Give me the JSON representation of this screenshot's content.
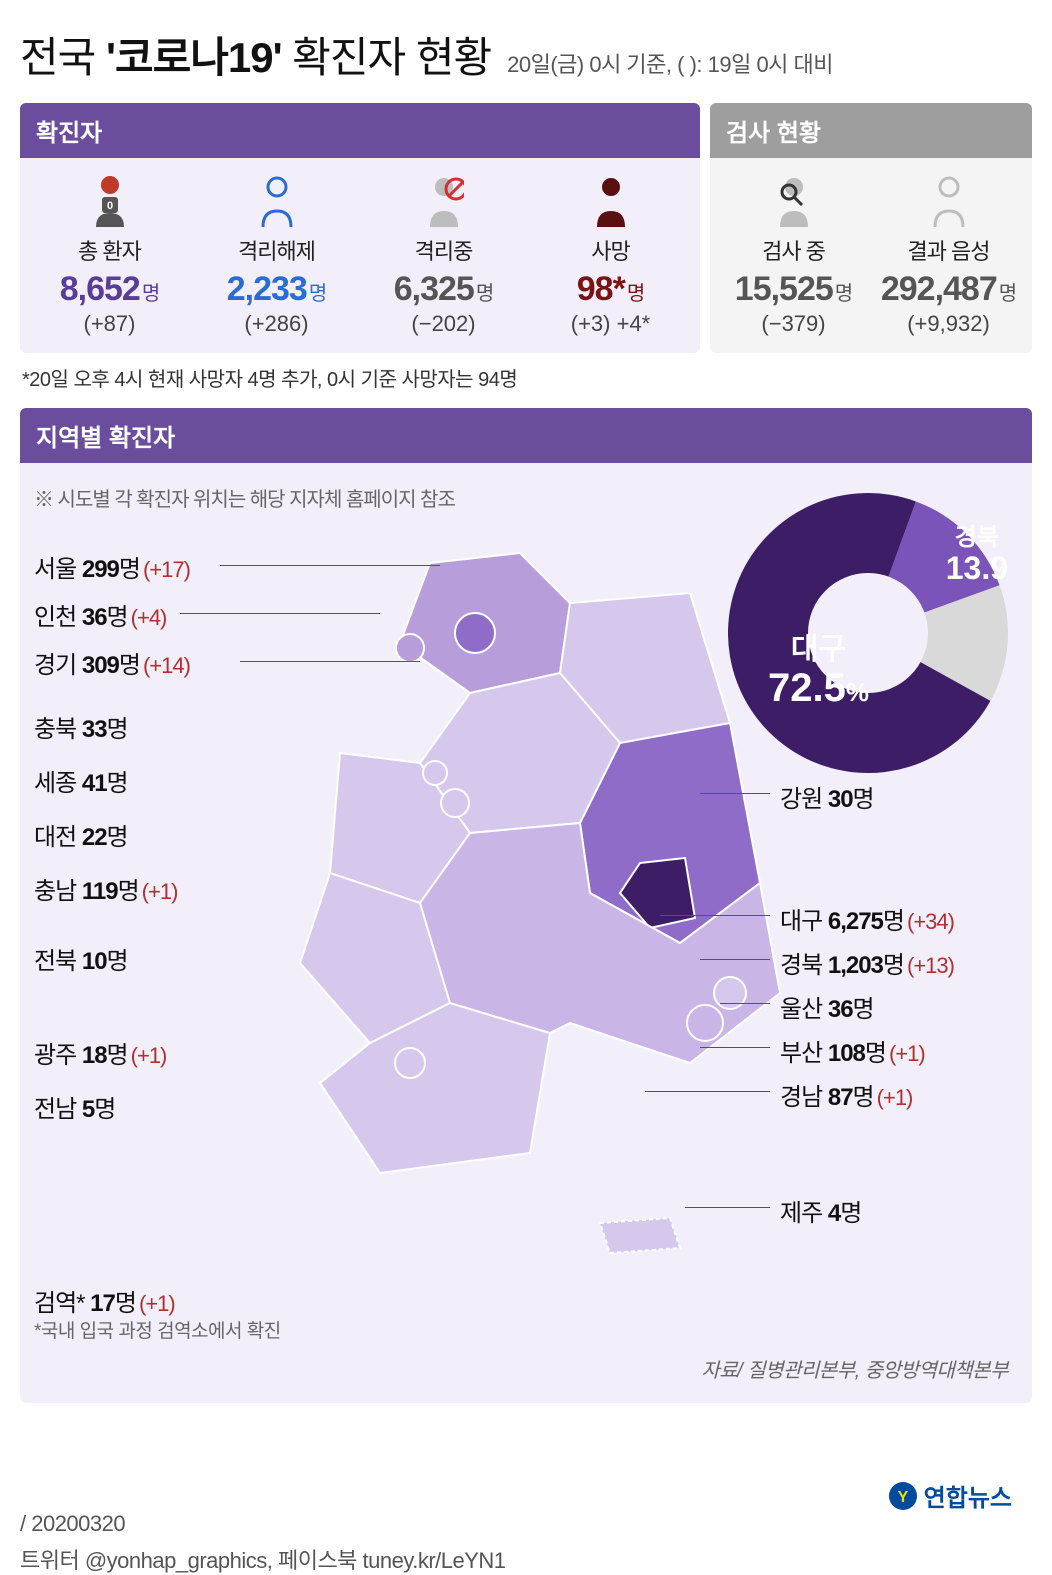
{
  "title_pre": "전국 ",
  "title_bold": "'코로나19'",
  "title_post": " 확진자 현황",
  "asof": "20일(금) 0시 기준, ( ): 19일 0시 대비",
  "panel_left_title": "확진자",
  "panel_right_title": "검사 현황",
  "stats": {
    "total": {
      "label": "총 환자",
      "value": "8,652",
      "unit": "명",
      "delta": "(+87)",
      "color": "#5a3d99"
    },
    "release": {
      "label": "격리해제",
      "value": "2,233",
      "unit": "명",
      "delta": "(+286)",
      "color": "#2b6cd4"
    },
    "isol": {
      "label": "격리중",
      "value": "6,325",
      "unit": "명",
      "delta": "(−202)",
      "color": "#555555"
    },
    "death": {
      "label": "사망",
      "value": "98*",
      "unit": "명",
      "delta": "(+3) +4*",
      "color": "#7a1313"
    },
    "testing": {
      "label": "검사 중",
      "value": "15,525",
      "unit": "명",
      "delta": "(−379)",
      "color": "#555555"
    },
    "neg": {
      "label": "결과 음성",
      "value": "292,487",
      "unit": "명",
      "delta": "(+9,932)",
      "color": "#555555"
    }
  },
  "death_note": "*20일 오후 4시 현재 사망자 4명 추가, 0시 기준 사망자는 94명",
  "region_header": "지역별 확진자",
  "map_note": "※ 시도별 각 확진자 위치는 해당 지자체 홈페이지 참조",
  "donut": {
    "values": {
      "daegu": 72.5,
      "gyeongbuk": 13.9,
      "other": 13.6
    },
    "labels": {
      "daegu": "대구",
      "gyeongbuk": "경북"
    },
    "colors": {
      "daegu": "#3d1e66",
      "gyeongbuk": "#7a54b8",
      "other": "#d9d9d9"
    },
    "center": "#f3effa"
  },
  "regions_left": [
    {
      "name": "서울",
      "v": "299",
      "u": "명",
      "d": "(+17)"
    },
    {
      "name": "인천",
      "v": "36",
      "u": "명",
      "d": "(+4)"
    },
    {
      "name": "경기",
      "v": "309",
      "u": "명",
      "d": "(+14)"
    },
    {
      "name": "충북",
      "v": "33",
      "u": "명",
      "d": ""
    },
    {
      "name": "세종",
      "v": "41",
      "u": "명",
      "d": ""
    },
    {
      "name": "대전",
      "v": "22",
      "u": "명",
      "d": ""
    },
    {
      "name": "충남",
      "v": "119",
      "u": "명",
      "d": "(+1)"
    },
    {
      "name": "전북",
      "v": "10",
      "u": "명",
      "d": ""
    },
    {
      "name": "광주",
      "v": "18",
      "u": "명",
      "d": "(+1)"
    },
    {
      "name": "전남",
      "v": "5",
      "u": "명",
      "d": ""
    }
  ],
  "regions_right": [
    {
      "name": "강원",
      "v": "30",
      "u": "명",
      "d": ""
    },
    {
      "name": "대구",
      "v": "6,275",
      "u": "명",
      "d": "(+34)"
    },
    {
      "name": "경북",
      "v": "1,203",
      "u": "명",
      "d": "(+13)"
    },
    {
      "name": "울산",
      "v": "36",
      "u": "명",
      "d": ""
    },
    {
      "name": "부산",
      "v": "108",
      "u": "명",
      "d": "(+1)"
    },
    {
      "name": "경남",
      "v": "87",
      "u": "명",
      "d": "(+1)"
    },
    {
      "name": "제주",
      "v": "4",
      "u": "명",
      "d": ""
    }
  ],
  "quarantine": {
    "name": "검역*",
    "v": "17",
    "u": "명",
    "d": "(+1)"
  },
  "quarantine_note": "*국내 입국 과정 검역소에서 확진",
  "source": "자료/ 질병관리본부, 중앙방역대책본부",
  "brand": "연합뉴스",
  "footer_date": "/ 20200320",
  "footer_social": "트위터 @yonhap_graphics, 페이스북 tuney.kr/LeYN1",
  "palette": {
    "hd": "#6b4d9e",
    "bg": "#f3effa",
    "gray_hd": "#9e9e9e"
  }
}
